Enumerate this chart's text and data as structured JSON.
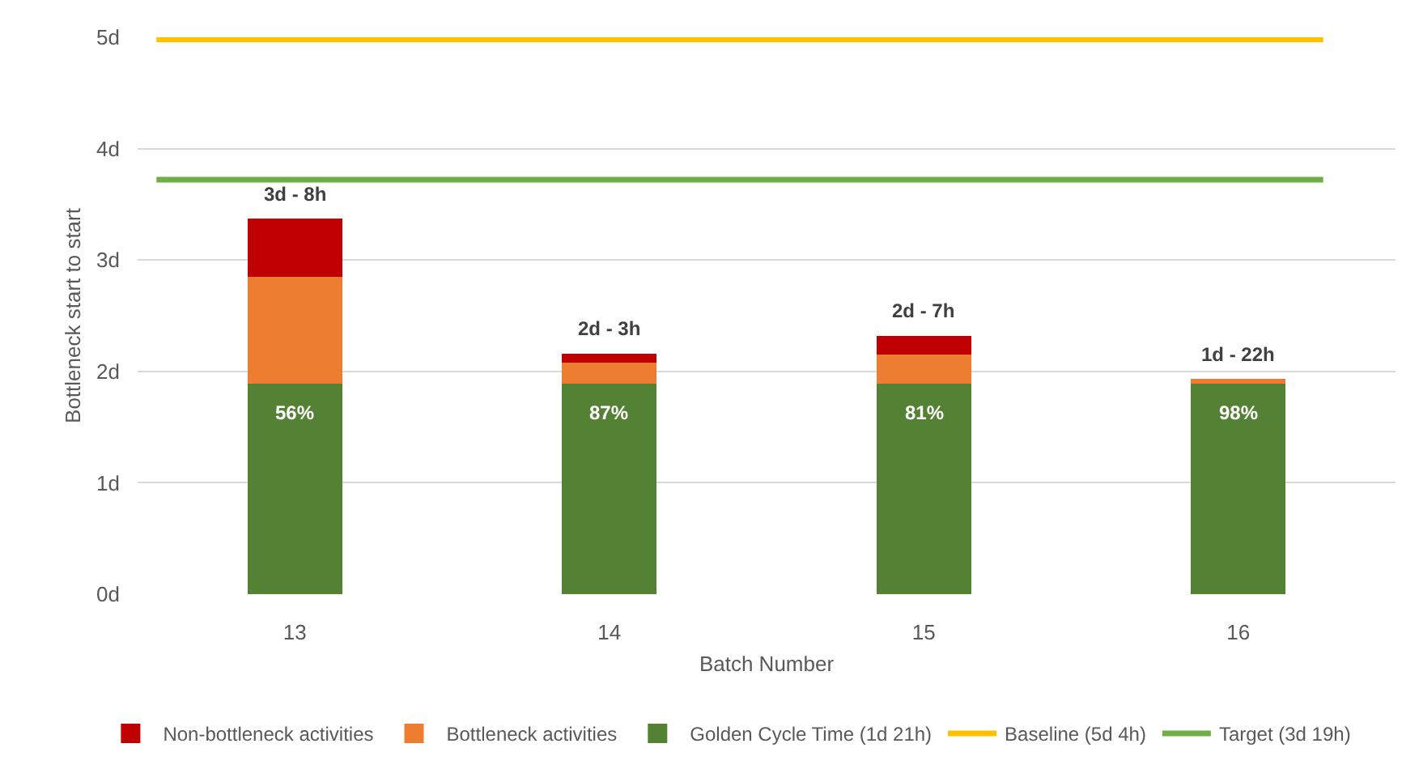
{
  "chart_data": {
    "type": "bar",
    "stacked": true,
    "xlabel": "Batch Number",
    "ylabel": "Bottleneck start to start",
    "categories": [
      "13",
      "14",
      "15",
      "16"
    ],
    "series": [
      {
        "name": "Golden Cycle Time (1d 21h)",
        "color": "#548235",
        "values": [
          1.89,
          1.89,
          1.89,
          1.89
        ]
      },
      {
        "name": "Bottleneck activities",
        "color": "#ed7d31",
        "values": [
          0.96,
          0.19,
          0.26,
          0.04
        ]
      },
      {
        "name": "Non-bottleneck activities",
        "color": "#c00000",
        "values": [
          0.52,
          0.08,
          0.17,
          null
        ]
      }
    ],
    "totals": [
      "3d - 8h",
      "2d - 3h",
      "2d - 7h",
      "1d - 22h"
    ],
    "annotations": [
      {
        "text": "56%",
        "x": "13",
        "y": 1.89
      },
      {
        "text": "87%",
        "x": "14",
        "y": 1.89
      },
      {
        "text": "81%",
        "x": "15",
        "y": 1.89
      },
      {
        "text": "98%",
        "x": "16",
        "y": 1.89
      }
    ],
    "ref_lines": [
      {
        "axis": "y",
        "value": 4.98,
        "label": "Baseline (5d 4h)",
        "color": "#ffc000"
      },
      {
        "axis": "y",
        "value": 3.72,
        "label": "Target (3d 19h)",
        "color": "#70ad47"
      }
    ],
    "ylim": [
      0,
      5
    ],
    "yticks": [
      {
        "value": 0,
        "label": "0d"
      },
      {
        "value": 1,
        "label": "1d"
      },
      {
        "value": 2,
        "label": "2d"
      },
      {
        "value": 3,
        "label": "3d"
      },
      {
        "value": 4,
        "label": "4d"
      },
      {
        "value": 5,
        "label": "5d"
      }
    ],
    "grid": "y",
    "legend": "bottom"
  }
}
